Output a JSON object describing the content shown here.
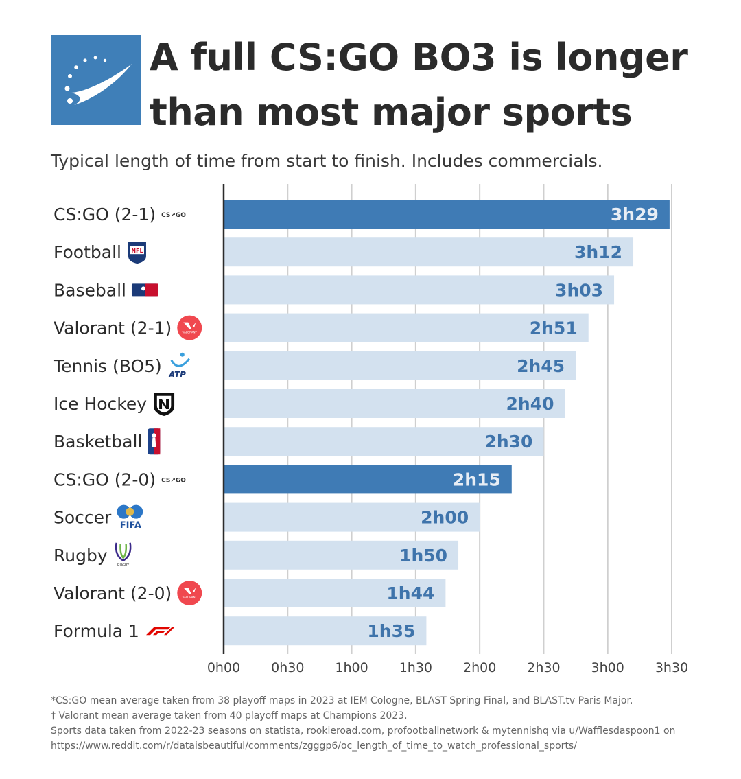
{
  "header": {
    "title_line1": "A full CS:GO BO3 is longer",
    "title_line2": "than most major sports",
    "subtitle": "Typical length of time from start to finish. Includes commercials."
  },
  "colors": {
    "highlight_bar": "#3f7bb5",
    "normal_bar": "#d3e1ef",
    "highlight_text": "#e8eef5",
    "normal_text": "#3f74ab",
    "grid": "#cfcfcf",
    "axis": "#2b2b2b"
  },
  "chart_data": {
    "type": "bar",
    "orientation": "horizontal",
    "title": "A full CS:GO BO3 is longer than most major sports",
    "subtitle": "Typical length of time from start to finish. Includes commercials.",
    "categories": [
      "CS:GO (2-1)",
      "Football",
      "Baseball",
      "Valorant (2-1)",
      "Tennis (BO5)",
      "Ice Hockey",
      "Basketball",
      "CS:GO (2-0)",
      "Soccer",
      "Rugby",
      "Valorant (2-0)",
      "Formula 1"
    ],
    "values": [
      209,
      192,
      183,
      171,
      165,
      160,
      150,
      135,
      120,
      110,
      104,
      95
    ],
    "value_units": "minutes",
    "data_labels": [
      "3h29",
      "3h12",
      "3h03",
      "2h51",
      "2h45",
      "2h40",
      "2h30",
      "2h15",
      "2h00",
      "1h50",
      "1h44",
      "1h35"
    ],
    "highlighted": [
      true,
      false,
      false,
      false,
      false,
      false,
      false,
      true,
      false,
      false,
      false,
      false
    ],
    "logo_icons": [
      "csgo-icon",
      "nfl-icon",
      "mlb-icon",
      "valorant-icon",
      "atp-icon",
      "nhl-icon",
      "nba-icon",
      "csgo-icon",
      "fifa-icon",
      "rugby-icon",
      "valorant-icon",
      "f1-icon"
    ],
    "icon_labels": {
      "csgo": "CS↗GO",
      "nfl": "NFL",
      "atp": "ATP",
      "fifa": "FIFA",
      "valorant": "VALORANT",
      "rugby": "RUGBY"
    },
    "xticks": [
      0,
      30,
      60,
      90,
      120,
      150,
      180,
      210
    ],
    "xtick_labels": [
      "0h00",
      "0h30",
      "1h00",
      "1h30",
      "2h00",
      "2h30",
      "3h00",
      "3h30"
    ],
    "xlim": [
      0,
      210
    ],
    "grid": true,
    "xlabel": "",
    "ylabel": ""
  },
  "footnotes": [
    "*CS:GO mean average taken from 38 playoff maps in 2023 at IEM Cologne, BLAST Spring Final, and BLAST.tv Paris Major.",
    "† Valorant mean average taken from 40 playoff maps at Champions 2023.",
    "Sports data taken from 2022-23 seasons on statista, rookieroad.com, profootballnetwork & mytennishq via u/Wafflesdaspoon1 on",
    "https://www.reddit.com/r/dataisbeautiful/comments/zgggp6/oc_length_of_time_to_watch_professional_sports/"
  ]
}
